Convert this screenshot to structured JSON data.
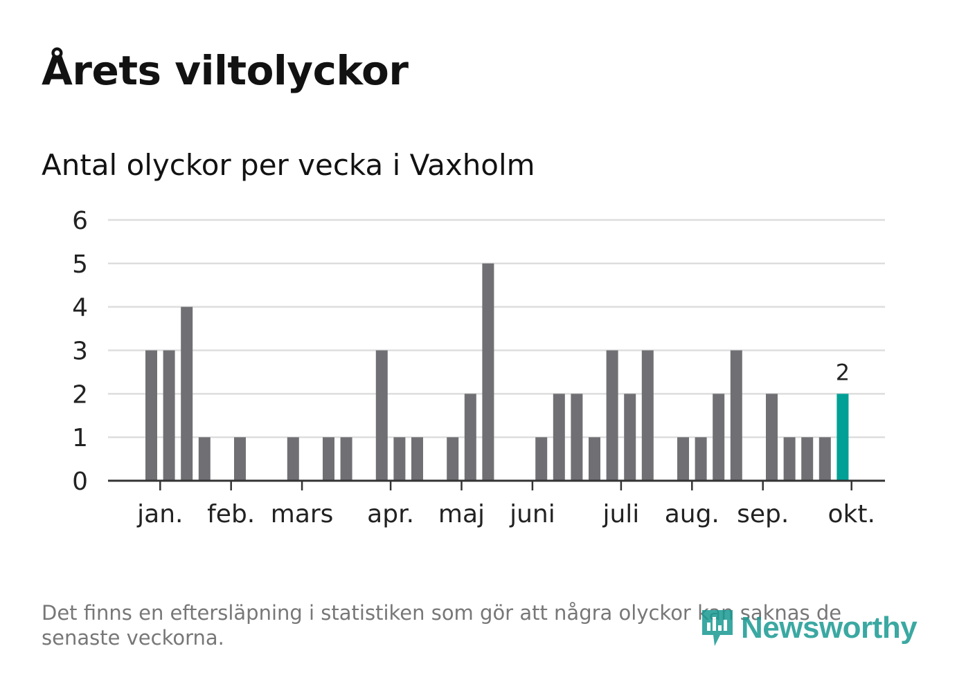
{
  "title": "Årets viltolyckor",
  "subtitle": "Antal olyckor per vecka i Vaxholm",
  "footnote": "Det finns en eftersläpning i statistiken som gör att några olyckor kan saknas de senaste veckorna.",
  "logo": {
    "text": "Newsworthy",
    "color": "#1a9a92"
  },
  "colors": {
    "bar": "#707074",
    "highlight": "#00a096",
    "grid": "#dddddd",
    "axis": "#333333",
    "text": "#222222"
  },
  "chart_data": {
    "type": "bar",
    "title": "Antal olyckor per vecka i Vaxholm",
    "xlabel": "",
    "ylabel": "",
    "ylim": [
      0,
      6
    ],
    "yticks": [
      0,
      1,
      2,
      3,
      4,
      5,
      6
    ],
    "weeks": [
      1,
      2,
      3,
      4,
      5,
      6,
      7,
      8,
      9,
      10,
      11,
      12,
      13,
      14,
      15,
      16,
      17,
      18,
      19,
      20,
      21,
      22,
      23,
      24,
      25,
      26,
      27,
      28,
      29,
      30,
      31,
      32,
      33,
      34,
      35,
      36,
      37,
      38,
      39,
      40
    ],
    "values": [
      3,
      3,
      4,
      1,
      0,
      1,
      0,
      0,
      1,
      0,
      1,
      1,
      0,
      3,
      1,
      1,
      0,
      1,
      2,
      5,
      0,
      0,
      1,
      2,
      2,
      1,
      3,
      2,
      3,
      0,
      1,
      1,
      2,
      3,
      0,
      2,
      1,
      1,
      1,
      2
    ],
    "highlight_index": 39,
    "highlight_label": "2",
    "months": [
      {
        "label": "jan.",
        "week": 1.5
      },
      {
        "label": "feb.",
        "week": 5.5
      },
      {
        "label": "mars",
        "week": 9.5
      },
      {
        "label": "apr.",
        "week": 14.5
      },
      {
        "label": "maj",
        "week": 18.5
      },
      {
        "label": "juni",
        "week": 22.5
      },
      {
        "label": "juli",
        "week": 27.5
      },
      {
        "label": "aug.",
        "week": 31.5
      },
      {
        "label": "sep.",
        "week": 35.5
      },
      {
        "label": "okt.",
        "week": 40.5
      }
    ]
  }
}
